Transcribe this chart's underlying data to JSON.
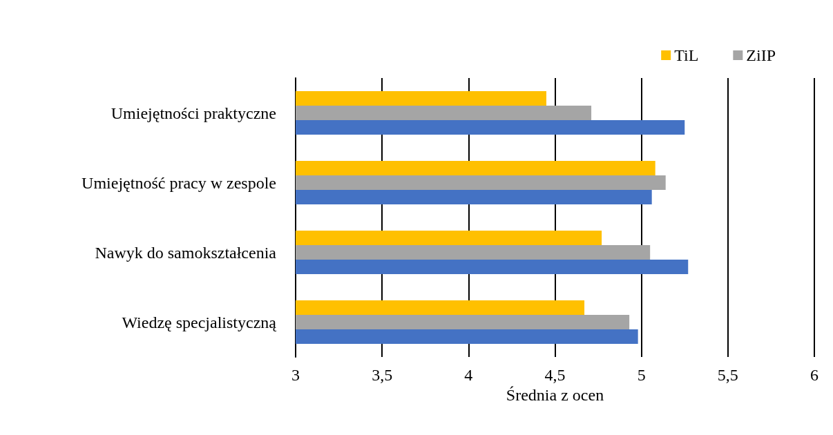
{
  "chart_data": {
    "type": "bar",
    "orientation": "horizontal",
    "xlabel": "Średnia z ocen",
    "categories": [
      "Umiejętności praktyczne",
      "Umiejętność pracy w zespole",
      "Nawyk do samokształcenia",
      "Wiedzę specjalistyczną"
    ],
    "series": [
      {
        "name": "TiL",
        "color": "#ffc000",
        "values": [
          4.45,
          5.08,
          4.77,
          4.67
        ]
      },
      {
        "name": "ZiIP",
        "color": "#a5a5a5",
        "values": [
          4.71,
          5.14,
          5.05,
          4.93
        ]
      },
      {
        "color": "#4472c4",
        "values": [
          5.25,
          5.06,
          5.27,
          4.98
        ]
      }
    ],
    "xlim": [
      3,
      6
    ],
    "xticks": [
      {
        "value": 3,
        "label": "3"
      },
      {
        "value": 3.5,
        "label": "3,5"
      },
      {
        "value": 4,
        "label": "4"
      },
      {
        "value": 4.5,
        "label": "4,5"
      },
      {
        "value": 5,
        "label": "5"
      },
      {
        "value": 5.5,
        "label": "5,5"
      },
      {
        "value": 6,
        "label": "6"
      }
    ],
    "grid": "x",
    "legend": "top right"
  }
}
